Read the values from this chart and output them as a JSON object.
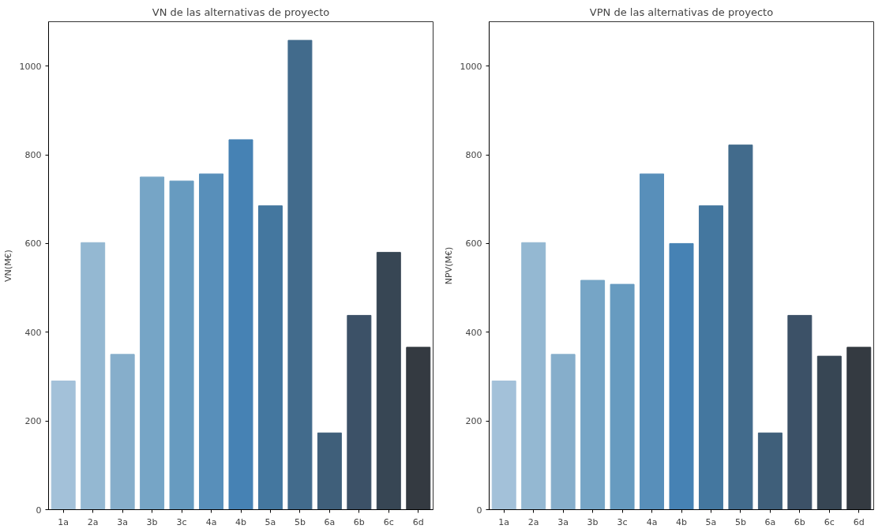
{
  "chart_data": [
    {
      "type": "bar",
      "title": "VN de las alternativas de proyecto",
      "ylabel": "VN(M€)",
      "categories": [
        "1a",
        "2a",
        "3a",
        "3b",
        "3c",
        "4a",
        "4b",
        "5a",
        "5b",
        "6a",
        "6b",
        "6c",
        "6d"
      ],
      "values": [
        290,
        602,
        350,
        750,
        741,
        757,
        834,
        685,
        1058,
        173,
        438,
        580,
        366
      ],
      "colors": [
        "#a3c1d9",
        "#94b8d2",
        "#86aecb",
        "#76a5c6",
        "#679bc0",
        "#588fba",
        "#4682b4",
        "#44779f",
        "#426b8c",
        "#3f5f7a",
        "#3c5167",
        "#374654",
        "#343a41"
      ],
      "ylim": [
        0,
        1100
      ],
      "yticks": [
        0,
        200,
        400,
        600,
        800,
        1000
      ],
      "grid": false
    },
    {
      "type": "bar",
      "title": "VPN de las alternativas de proyecto",
      "ylabel": "NPV(M€)",
      "categories": [
        "1a",
        "2a",
        "3a",
        "3b",
        "3c",
        "4a",
        "4b",
        "5a",
        "5b",
        "6a",
        "6b",
        "6c",
        "6d"
      ],
      "values": [
        290,
        602,
        350,
        517,
        508,
        757,
        600,
        685,
        822,
        173,
        438,
        346,
        366
      ],
      "colors": [
        "#a3c1d9",
        "#94b8d2",
        "#86aecb",
        "#76a5c6",
        "#679bc0",
        "#588fba",
        "#4682b4",
        "#44779f",
        "#426b8c",
        "#3f5f7a",
        "#3c5167",
        "#374654",
        "#343a41"
      ],
      "ylim": [
        0,
        1100
      ],
      "yticks": [
        0,
        200,
        400,
        600,
        800,
        1000
      ],
      "grid": false
    }
  ]
}
